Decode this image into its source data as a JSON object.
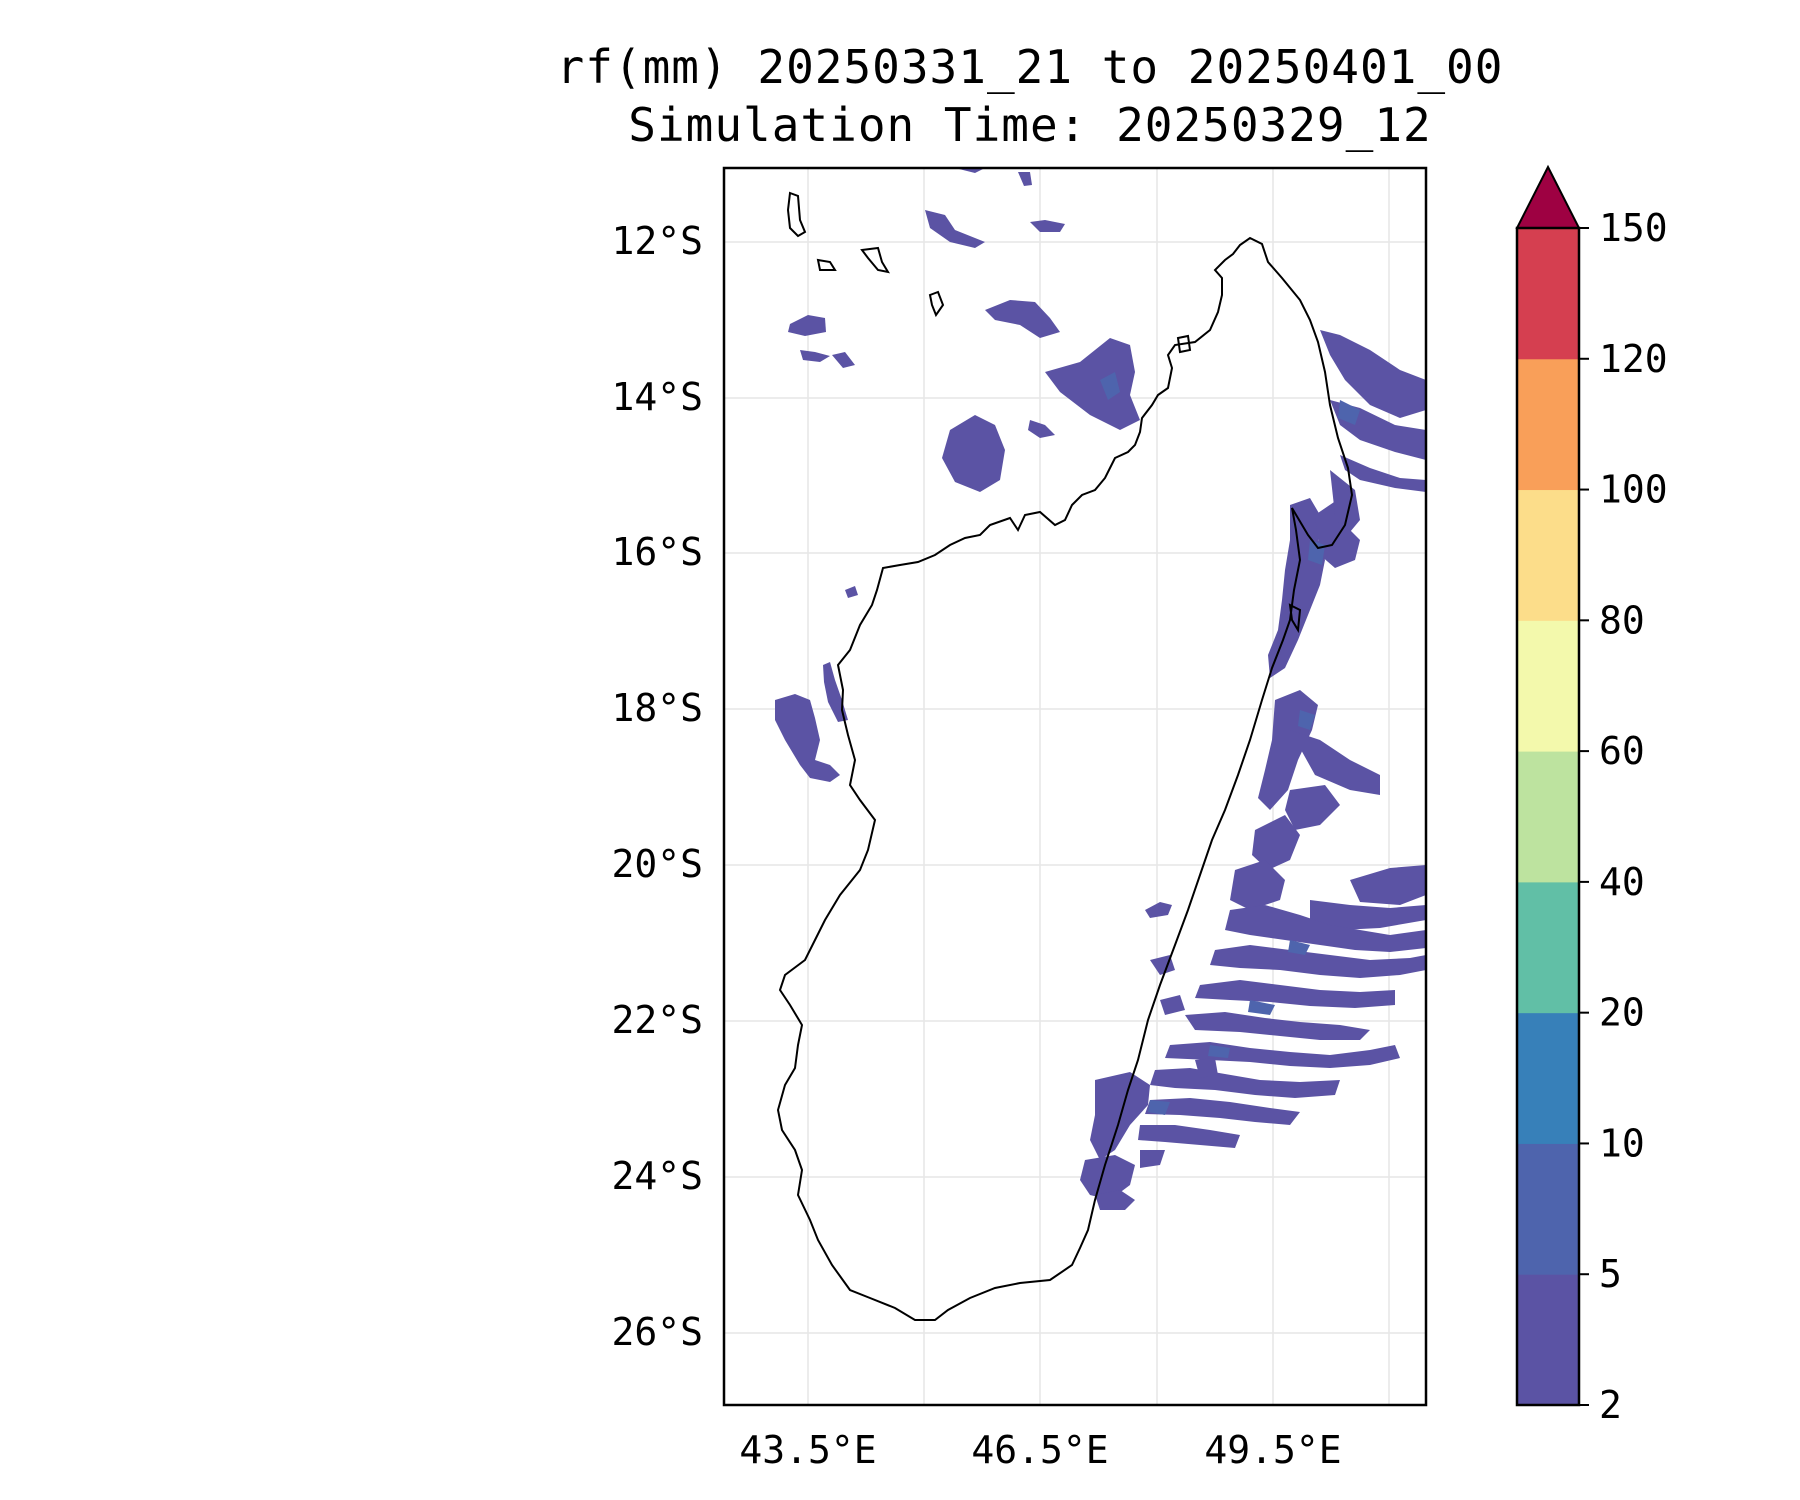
{
  "title": {
    "line1": "rf(mm) 20250331_21 to 20250401_00",
    "line2": "Simulation Time: 20250329_12"
  },
  "map": {
    "lat_ticks": [
      "12°S",
      "14°S",
      "16°S",
      "18°S",
      "20°S",
      "22°S",
      "24°S",
      "26°S"
    ],
    "lon_ticks": [
      "43.5°E",
      "46.5°E",
      "49.5°E"
    ]
  },
  "colorbar": {
    "ticks": [
      "2",
      "5",
      "10",
      "20",
      "40",
      "60",
      "80",
      "100",
      "120",
      "150"
    ],
    "colors": [
      "#5b53a4",
      "#4e64ad",
      "#3780b9",
      "#61bfa6",
      "#bde39f",
      "#f3f9ac",
      "#fcdd8a",
      "#f99f59",
      "#d53f50",
      "#9e0142"
    ],
    "extend": "max"
  }
}
